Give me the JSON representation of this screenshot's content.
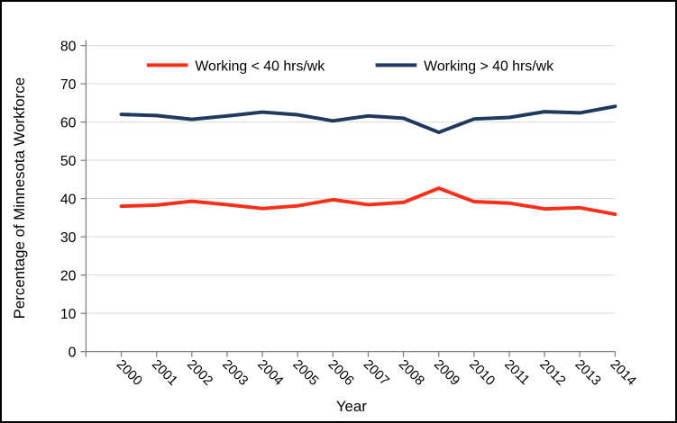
{
  "window": {
    "background_color": "#FFFFFF",
    "border_color": "#000000"
  },
  "chart_data": {
    "type": "line",
    "title": "",
    "xlabel": "Year",
    "ylabel": "Percentage of Minnesota Workforce",
    "x": [
      2000,
      2001,
      2002,
      2003,
      2004,
      2005,
      2006,
      2007,
      2008,
      2009,
      2010,
      2011,
      2012,
      2013,
      2014
    ],
    "series": [
      {
        "name": "Working < 40 hrs/wk",
        "color": "#F8301A",
        "values": [
          38.0,
          38.3,
          39.3,
          38.4,
          37.4,
          38.1,
          39.7,
          38.4,
          39.0,
          42.7,
          39.2,
          38.8,
          37.3,
          37.6,
          35.9
        ]
      },
      {
        "name": "Working > 40 hrs/wk",
        "color": "#1F3A5C",
        "values": [
          62.0,
          61.7,
          60.7,
          61.6,
          62.6,
          61.9,
          60.3,
          61.6,
          61.0,
          57.3,
          60.8,
          61.2,
          62.7,
          62.4,
          64.1
        ]
      }
    ],
    "ylim": [
      0,
      80
    ],
    "yticks": [
      0,
      10,
      20,
      30,
      40,
      50,
      60,
      70,
      80
    ],
    "grid": "horizontal",
    "gridline_color": "#D9D9D9",
    "axis_color": "#808080",
    "text_color": "#000000",
    "legend_position": "top-inside",
    "xtick_rotation_deg": 45
  }
}
